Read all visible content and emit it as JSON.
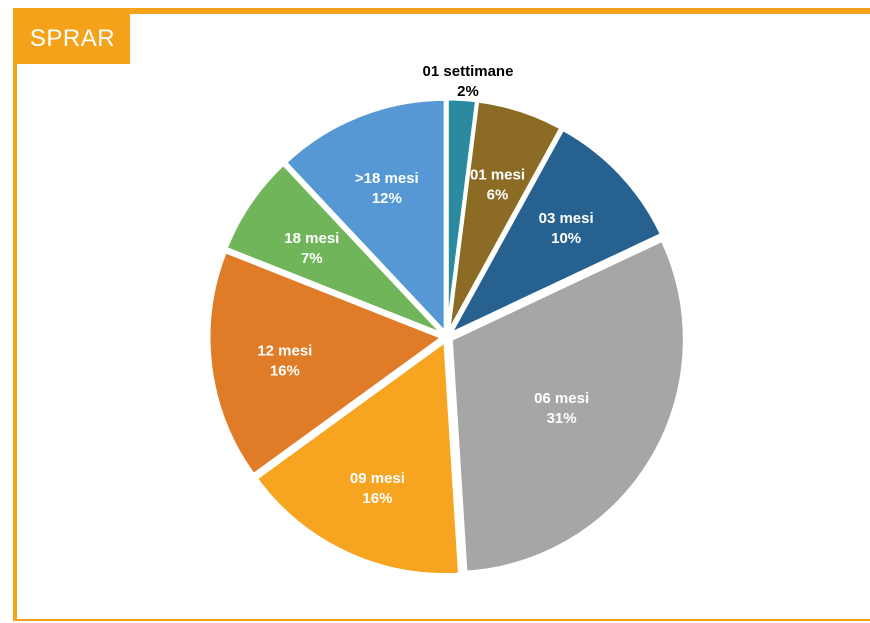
{
  "badge": {
    "label": "SPRAR"
  },
  "colors": {
    "accent": "#f5a21b"
  },
  "chart_data": {
    "type": "pie",
    "title": "",
    "slices": [
      {
        "name": "01 settimane",
        "value": 2,
        "label": "2%",
        "color": "#2a8a9f",
        "label_color": "#000000"
      },
      {
        "name": "01 mesi",
        "value": 6,
        "label": "6%",
        "color": "#8c6b24",
        "label_color": "#ffffff"
      },
      {
        "name": "03 mesi",
        "value": 10,
        "label": "10%",
        "color": "#27618f",
        "label_color": "#ffffff"
      },
      {
        "name": "06 mesi",
        "value": 31,
        "label": "31%",
        "color": "#a6a6a6",
        "label_color": "#ffffff"
      },
      {
        "name": "09 mesi",
        "value": 16,
        "label": "16%",
        "color": "#f7a420",
        "label_color": "#ffffff"
      },
      {
        "name": "12 mesi",
        "value": 16,
        "label": "16%",
        "color": "#e07b27",
        "label_color": "#ffffff"
      },
      {
        "name": "18 mesi",
        "value": 7,
        "label": "7%",
        "color": "#70b559",
        "label_color": "#ffffff"
      },
      {
        "name": ">18 mesi",
        "value": 12,
        "label": "12%",
        "color": "#5598d3",
        "label_color": "#ffffff"
      }
    ]
  }
}
